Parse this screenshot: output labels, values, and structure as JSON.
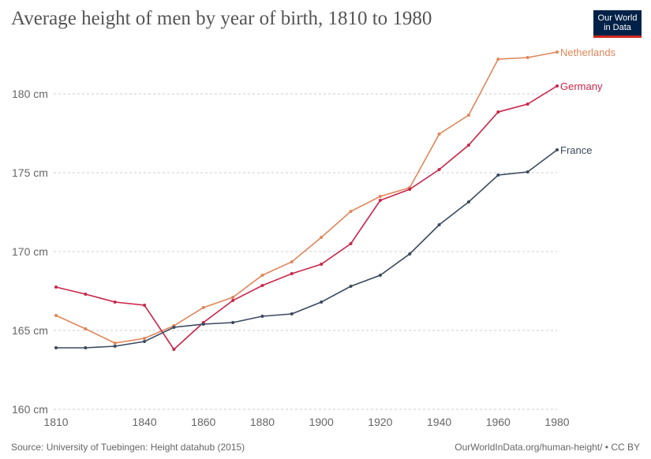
{
  "title": "Average height of men by year of birth, 1810 to 1980",
  "logo": {
    "line1": "Our World",
    "line2": "in Data"
  },
  "source": "Source: University of Tuebingen: Height datahub (2015)",
  "credit": "OurWorldInData.org/human-height/ • CC BY",
  "chart_data": {
    "type": "line",
    "title": "Average height of men by year of birth, 1810 to 1980",
    "xlim": [
      1810,
      1980
    ],
    "ylim": [
      160,
      182.7
    ],
    "x_ticks": [
      1810,
      1840,
      1860,
      1880,
      1900,
      1920,
      1940,
      1960,
      1980
    ],
    "y_ticks": [
      {
        "v": 160,
        "label": "160 cm"
      },
      {
        "v": 165,
        "label": "165 cm"
      },
      {
        "v": 170,
        "label": "170 cm"
      },
      {
        "v": 175,
        "label": "175 cm"
      },
      {
        "v": 180,
        "label": "180 cm"
      }
    ],
    "grid": true,
    "legend": "inline labels at line ends",
    "x": [
      1810,
      1820,
      1830,
      1840,
      1850,
      1860,
      1870,
      1880,
      1890,
      1900,
      1910,
      1920,
      1930,
      1940,
      1950,
      1960,
      1970,
      1980
    ],
    "series": [
      {
        "name": "Netherlands",
        "color": "#e0865a",
        "values": [
          165.95,
          165.1,
          164.2,
          164.5,
          165.3,
          166.45,
          167.1,
          168.5,
          169.35,
          170.9,
          172.55,
          173.5,
          174.05,
          177.45,
          178.65,
          182.2,
          182.3,
          182.65
        ]
      },
      {
        "name": "Germany",
        "color": "#c8264a",
        "values": [
          167.75,
          167.3,
          166.8,
          166.6,
          163.8,
          165.5,
          166.9,
          167.85,
          168.6,
          169.2,
          170.5,
          173.25,
          173.95,
          175.2,
          176.75,
          178.85,
          179.35,
          180.5
        ]
      },
      {
        "name": "France",
        "color": "#3a4a5e",
        "values": [
          163.9,
          163.9,
          164.0,
          164.3,
          165.2,
          165.4,
          165.5,
          165.9,
          166.05,
          166.8,
          167.8,
          168.5,
          169.85,
          171.7,
          173.15,
          174.85,
          175.05,
          176.45
        ]
      }
    ]
  }
}
